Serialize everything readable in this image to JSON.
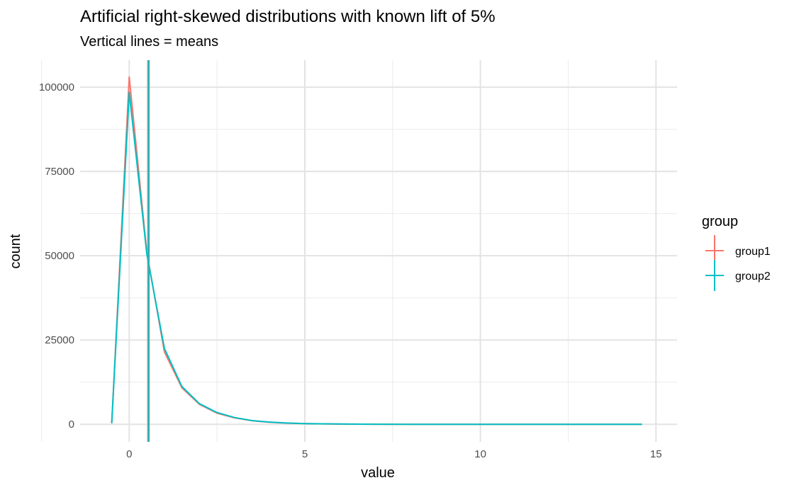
{
  "chart_data": {
    "type": "line",
    "title": "Artificial right-skewed distributions with known lift of 5%",
    "subtitle": "Vertical lines = means",
    "xlabel": "value",
    "ylabel": "count",
    "xlim": [
      -1.4,
      15.6
    ],
    "ylim": [
      -5200,
      108000
    ],
    "x_ticks": [
      0,
      5,
      10,
      15
    ],
    "x_tick_labels": [
      "0",
      "5",
      "10",
      "15"
    ],
    "y_ticks": [
      0,
      25000,
      50000,
      75000,
      100000
    ],
    "y_tick_labels": [
      "0",
      "25000",
      "50000",
      "75000",
      "100000"
    ],
    "grid": true,
    "legend": {
      "title": "group",
      "placement": "right"
    },
    "series": [
      {
        "name": "group1",
        "color": "#F8766D",
        "mean": 0.53,
        "x": [
          -0.5,
          0,
          0.5,
          1,
          1.5,
          2,
          2.5,
          3,
          3.5,
          4,
          4.5,
          5,
          6,
          7,
          8,
          9,
          10,
          11,
          12,
          13,
          14,
          14.6
        ],
        "y": [
          300,
          103000,
          51000,
          21500,
          10800,
          5900,
          3300,
          1900,
          1050,
          600,
          350,
          200,
          80,
          30,
          12,
          5,
          2,
          1,
          0,
          0,
          0,
          0
        ]
      },
      {
        "name": "group2",
        "color": "#00BFC4",
        "mean": 0.56,
        "x": [
          -0.5,
          0,
          0.5,
          1,
          1.5,
          2,
          2.5,
          3,
          3.5,
          4,
          4.5,
          5,
          6,
          7,
          8,
          9,
          10,
          11,
          12,
          13,
          14,
          14.6
        ],
        "y": [
          300,
          98500,
          50500,
          22500,
          11200,
          6100,
          3500,
          2000,
          1100,
          650,
          380,
          220,
          90,
          35,
          14,
          6,
          2,
          1,
          0,
          0,
          0,
          0
        ]
      }
    ]
  }
}
